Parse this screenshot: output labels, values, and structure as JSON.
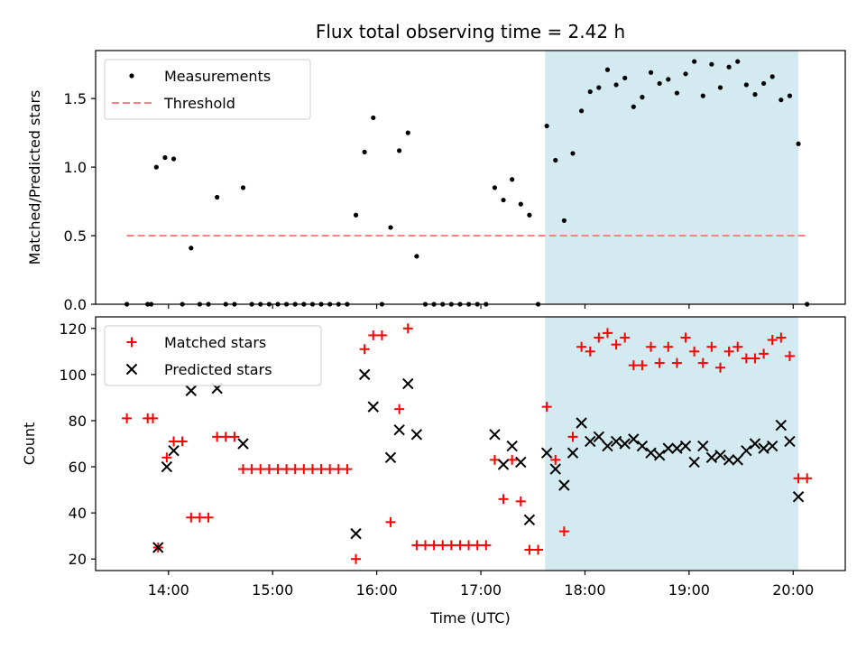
{
  "chart_data": [
    {
      "type": "scatter",
      "title": "Flux total observing time = 2.42 h",
      "xlabel": "",
      "ylabel": "Matched/Predicted stars",
      "xlim": [
        "13:18",
        "20:30"
      ],
      "ylim": [
        0,
        1.85
      ],
      "yticks": [
        0,
        0.5,
        1.0,
        1.5
      ],
      "ytick_labels": [
        "0.0",
        "0.5",
        "1.0",
        "1.5"
      ],
      "xticks": [
        "14:00",
        "15:00",
        "16:00",
        "17:00",
        "18:00",
        "19:00",
        "20:00"
      ],
      "shaded_region": {
        "x": [
          "17:37",
          "20:03"
        ],
        "color": "#d3eaf1"
      },
      "legend": {
        "placement": "upper-left",
        "entries": [
          "Measurements",
          "Threshold"
        ]
      },
      "series": [
        {
          "name": "Measurements",
          "marker": "dot",
          "color": "#000000",
          "points": [
            [
              "13:36",
              0
            ],
            [
              "13:48",
              0
            ],
            [
              "13:50",
              0
            ],
            [
              "13:53",
              1.0
            ],
            [
              "13:58",
              1.07
            ],
            [
              "14:03",
              1.06
            ],
            [
              "14:08",
              0
            ],
            [
              "14:13",
              0.41
            ],
            [
              "14:18",
              0
            ],
            [
              "14:23",
              0
            ],
            [
              "14:28",
              0.78
            ],
            [
              "14:33",
              0
            ],
            [
              "14:38",
              0
            ],
            [
              "14:43",
              0.85
            ],
            [
              "14:48",
              0
            ],
            [
              "14:53",
              0
            ],
            [
              "14:58",
              0
            ],
            [
              "15:03",
              0
            ],
            [
              "15:08",
              0
            ],
            [
              "15:13",
              0
            ],
            [
              "15:18",
              0
            ],
            [
              "15:23",
              0
            ],
            [
              "15:28",
              0
            ],
            [
              "15:33",
              0
            ],
            [
              "15:38",
              0
            ],
            [
              "15:43",
              0
            ],
            [
              "15:48",
              0.65
            ],
            [
              "15:53",
              1.11
            ],
            [
              "15:58",
              1.36
            ],
            [
              "16:03",
              0
            ],
            [
              "16:08",
              0.56
            ],
            [
              "16:13",
              1.12
            ],
            [
              "16:18",
              1.25
            ],
            [
              "16:23",
              0.35
            ],
            [
              "16:28",
              0
            ],
            [
              "16:33",
              0
            ],
            [
              "16:38",
              0
            ],
            [
              "16:43",
              0
            ],
            [
              "16:48",
              0
            ],
            [
              "16:53",
              0
            ],
            [
              "16:58",
              0
            ],
            [
              "17:03",
              0
            ],
            [
              "17:08",
              0.85
            ],
            [
              "17:13",
              0.76
            ],
            [
              "17:18",
              0.91
            ],
            [
              "17:23",
              0.73
            ],
            [
              "17:28",
              0.65
            ],
            [
              "17:33",
              0
            ],
            [
              "17:38",
              1.3
            ],
            [
              "17:43",
              1.05
            ],
            [
              "17:48",
              0.61
            ],
            [
              "17:53",
              1.1
            ],
            [
              "17:58",
              1.41
            ],
            [
              "18:03",
              1.55
            ],
            [
              "18:08",
              1.58
            ],
            [
              "18:13",
              1.71
            ],
            [
              "18:18",
              1.6
            ],
            [
              "18:23",
              1.65
            ],
            [
              "18:28",
              1.44
            ],
            [
              "18:33",
              1.51
            ],
            [
              "18:38",
              1.69
            ],
            [
              "18:43",
              1.61
            ],
            [
              "18:48",
              1.64
            ],
            [
              "18:53",
              1.54
            ],
            [
              "18:58",
              1.68
            ],
            [
              "19:03",
              1.77
            ],
            [
              "19:08",
              1.52
            ],
            [
              "19:13",
              1.75
            ],
            [
              "19:18",
              1.58
            ],
            [
              "19:23",
              1.73
            ],
            [
              "19:28",
              1.77
            ],
            [
              "19:33",
              1.6
            ],
            [
              "19:38",
              1.53
            ],
            [
              "19:43",
              1.61
            ],
            [
              "19:48",
              1.66
            ],
            [
              "19:53",
              1.49
            ],
            [
              "19:58",
              1.52
            ],
            [
              "20:03",
              1.17
            ],
            [
              "20:08",
              0
            ]
          ]
        },
        {
          "name": "Threshold",
          "marker": "dashed-line",
          "color": "#ff7f7f",
          "points": [
            [
              "13:36",
              0.5
            ],
            [
              "20:08",
              0.5
            ]
          ]
        }
      ]
    },
    {
      "type": "scatter",
      "title": "",
      "xlabel": "Time (UTC)",
      "ylabel": "Count",
      "xlim": [
        "13:18",
        "20:30"
      ],
      "ylim": [
        15,
        125
      ],
      "yticks": [
        20,
        40,
        60,
        80,
        100,
        120
      ],
      "ytick_labels": [
        "20",
        "40",
        "60",
        "80",
        "100",
        "120"
      ],
      "xticks": [
        "14:00",
        "15:00",
        "16:00",
        "17:00",
        "18:00",
        "19:00",
        "20:00"
      ],
      "shaded_region": {
        "x": [
          "17:37",
          "20:03"
        ],
        "color": "#d3eaf1"
      },
      "legend": {
        "placement": "upper-left",
        "entries": [
          "Matched stars",
          "Predicted stars"
        ]
      },
      "series": [
        {
          "name": "Matched stars",
          "marker": "plus",
          "color": "#ff0000",
          "points": [
            [
              "13:36",
              81
            ],
            [
              "13:48",
              81
            ],
            [
              "13:51",
              81
            ],
            [
              "13:54",
              25
            ],
            [
              "13:59",
              64
            ],
            [
              "14:03",
              71
            ],
            [
              "14:08",
              71
            ],
            [
              "14:13",
              38
            ],
            [
              "14:18",
              38
            ],
            [
              "14:23",
              38
            ],
            [
              "14:28",
              73
            ],
            [
              "14:33",
              73
            ],
            [
              "14:38",
              73
            ],
            [
              "14:43",
              59
            ],
            [
              "14:48",
              59
            ],
            [
              "14:53",
              59
            ],
            [
              "14:58",
              59
            ],
            [
              "15:03",
              59
            ],
            [
              "15:08",
              59
            ],
            [
              "15:13",
              59
            ],
            [
              "15:18",
              59
            ],
            [
              "15:23",
              59
            ],
            [
              "15:28",
              59
            ],
            [
              "15:33",
              59
            ],
            [
              "15:38",
              59
            ],
            [
              "15:43",
              59
            ],
            [
              "15:48",
              20
            ],
            [
              "15:53",
              111
            ],
            [
              "15:58",
              117
            ],
            [
              "16:03",
              117
            ],
            [
              "16:08",
              36
            ],
            [
              "16:13",
              85
            ],
            [
              "16:18",
              120
            ],
            [
              "16:23",
              26
            ],
            [
              "16:28",
              26
            ],
            [
              "16:33",
              26
            ],
            [
              "16:38",
              26
            ],
            [
              "16:43",
              26
            ],
            [
              "16:48",
              26
            ],
            [
              "16:53",
              26
            ],
            [
              "16:58",
              26
            ],
            [
              "17:03",
              26
            ],
            [
              "17:08",
              63
            ],
            [
              "17:13",
              46
            ],
            [
              "17:18",
              63
            ],
            [
              "17:23",
              45
            ],
            [
              "17:28",
              24
            ],
            [
              "17:33",
              24
            ],
            [
              "17:38",
              86
            ],
            [
              "17:43",
              63
            ],
            [
              "17:48",
              32
            ],
            [
              "17:53",
              73
            ],
            [
              "17:58",
              112
            ],
            [
              "18:03",
              110
            ],
            [
              "18:08",
              116
            ],
            [
              "18:13",
              118
            ],
            [
              "18:18",
              113
            ],
            [
              "18:23",
              116
            ],
            [
              "18:28",
              104
            ],
            [
              "18:33",
              104
            ],
            [
              "18:38",
              112
            ],
            [
              "18:43",
              105
            ],
            [
              "18:48",
              112
            ],
            [
              "18:53",
              105
            ],
            [
              "18:58",
              116
            ],
            [
              "19:03",
              110
            ],
            [
              "19:08",
              105
            ],
            [
              "19:13",
              112
            ],
            [
              "19:18",
              103
            ],
            [
              "19:23",
              110
            ],
            [
              "19:28",
              112
            ],
            [
              "19:33",
              107
            ],
            [
              "19:38",
              107
            ],
            [
              "19:43",
              109
            ],
            [
              "19:48",
              115
            ],
            [
              "19:53",
              116
            ],
            [
              "19:58",
              108
            ],
            [
              "20:03",
              55
            ],
            [
              "20:08",
              55
            ]
          ]
        },
        {
          "name": "Predicted stars",
          "marker": "x",
          "color": "#000000",
          "points": [
            [
              "13:54",
              25
            ],
            [
              "13:59",
              60
            ],
            [
              "14:03",
              67
            ],
            [
              "14:13",
              93
            ],
            [
              "14:28",
              94
            ],
            [
              "14:43",
              70
            ],
            [
              "15:48",
              31
            ],
            [
              "15:53",
              100
            ],
            [
              "15:58",
              86
            ],
            [
              "16:08",
              64
            ],
            [
              "16:13",
              76
            ],
            [
              "16:18",
              96
            ],
            [
              "16:23",
              74
            ],
            [
              "17:08",
              74
            ],
            [
              "17:13",
              61
            ],
            [
              "17:18",
              69
            ],
            [
              "17:23",
              62
            ],
            [
              "17:28",
              37
            ],
            [
              "17:38",
              66
            ],
            [
              "17:43",
              59
            ],
            [
              "17:48",
              52
            ],
            [
              "17:53",
              66
            ],
            [
              "17:58",
              79
            ],
            [
              "18:03",
              71
            ],
            [
              "18:08",
              73
            ],
            [
              "18:13",
              69
            ],
            [
              "18:18",
              71
            ],
            [
              "18:23",
              70
            ],
            [
              "18:28",
              72
            ],
            [
              "18:33",
              69
            ],
            [
              "18:38",
              66
            ],
            [
              "18:43",
              65
            ],
            [
              "18:48",
              68
            ],
            [
              "18:53",
              68
            ],
            [
              "18:58",
              69
            ],
            [
              "19:03",
              62
            ],
            [
              "19:08",
              69
            ],
            [
              "19:13",
              64
            ],
            [
              "19:18",
              65
            ],
            [
              "19:23",
              63
            ],
            [
              "19:28",
              63
            ],
            [
              "19:33",
              67
            ],
            [
              "19:38",
              70
            ],
            [
              "19:43",
              68
            ],
            [
              "19:48",
              69
            ],
            [
              "19:53",
              78
            ],
            [
              "19:58",
              71
            ],
            [
              "20:03",
              47
            ]
          ]
        }
      ]
    }
  ]
}
